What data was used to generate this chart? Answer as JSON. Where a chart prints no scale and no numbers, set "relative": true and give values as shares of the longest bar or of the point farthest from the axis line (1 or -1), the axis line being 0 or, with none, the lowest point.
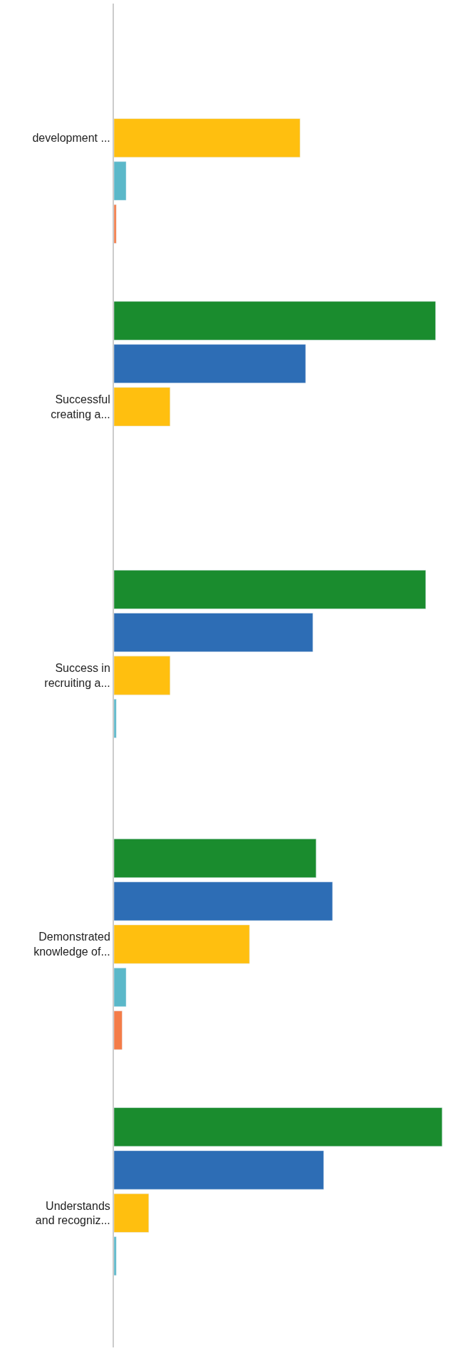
{
  "chart_data": {
    "type": "bar",
    "orientation": "horizontal",
    "relative": true,
    "categories": [
      "development ...",
      "Successful\ncreating a...",
      "Success in\nrecruiting a...",
      "Demonstrated\nknowledge of...",
      "Understands\nand recogniz..."
    ],
    "series": [
      {
        "color": "#1a8c2e",
        "values": [
          null,
          0.98,
          0.95,
          0.616,
          1
        ]
      },
      {
        "color": "#2d6db5",
        "values": [
          null,
          0.584,
          0.606,
          0.666,
          0.639
        ]
      },
      {
        "color": "#ffbf0f",
        "values": [
          0.567,
          0.171,
          0.171,
          0.413,
          0.106
        ]
      },
      {
        "color": "#5bb8c9",
        "values": [
          0.037,
          null,
          0.007,
          0.037,
          0.007
        ]
      },
      {
        "color": "#f47c48",
        "values": [
          0.007,
          null,
          null,
          0.025,
          null
        ]
      }
    ]
  }
}
